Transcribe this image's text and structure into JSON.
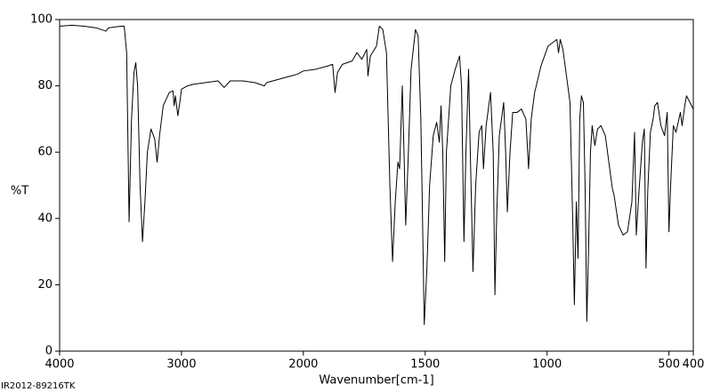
{
  "chart_data": {
    "type": "line",
    "xlabel": "Wavenumber[cm-1]",
    "ylabel": "%T",
    "footnote": "IR2012-89216TK",
    "color": "#000000",
    "xlim": [
      4000,
      400
    ],
    "x_scale_change": 2000,
    "xticks": [
      4000,
      3000,
      2000,
      1500,
      1000,
      500,
      400
    ],
    "ylim": [
      0,
      100
    ],
    "yticks": [
      0,
      20,
      40,
      60,
      80,
      100
    ],
    "x": [
      4000,
      3900,
      3800,
      3700,
      3620,
      3600,
      3500,
      3470,
      3450,
      3430,
      3410,
      3390,
      3375,
      3360,
      3340,
      3320,
      3300,
      3280,
      3250,
      3220,
      3200,
      3180,
      3150,
      3100,
      3070,
      3060,
      3050,
      3030,
      3010,
      3000,
      2950,
      2900,
      2800,
      2700,
      2650,
      2600,
      2500,
      2400,
      2320,
      2300,
      2200,
      2100,
      2050,
      2000,
      1950,
      1900,
      1880,
      1870,
      1860,
      1840,
      1800,
      1780,
      1760,
      1740,
      1735,
      1725,
      1700,
      1688,
      1674,
      1659,
      1645,
      1634,
      1623,
      1612,
      1605,
      1594,
      1587,
      1580,
      1569,
      1558,
      1540,
      1529,
      1518,
      1511,
      1504,
      1493,
      1482,
      1467,
      1453,
      1442,
      1435,
      1428,
      1420,
      1413,
      1395,
      1377,
      1359,
      1351,
      1341,
      1333,
      1322,
      1315,
      1304,
      1293,
      1279,
      1268,
      1261,
      1250,
      1232,
      1221,
      1214,
      1207,
      1196,
      1178,
      1170,
      1163,
      1152,
      1141,
      1123,
      1105,
      1087,
      1076,
      1065,
      1051,
      1025,
      996,
      960,
      953,
      946,
      935,
      924,
      906,
      895,
      888,
      880,
      873,
      866,
      859,
      851,
      844,
      837,
      830,
      822,
      815,
      804,
      793,
      779,
      761,
      743,
      732,
      725,
      707,
      688,
      670,
      652,
      641,
      634,
      623,
      609,
      601,
      594,
      587,
      576,
      565,
      558,
      547,
      533,
      518,
      507,
      500,
      493,
      482,
      471,
      453,
      446,
      435,
      428,
      400
    ],
    "values": [
      98,
      98.3,
      98,
      97.5,
      96.5,
      97.5,
      98,
      98,
      90,
      39,
      70,
      84,
      87,
      80,
      50,
      33,
      45,
      60,
      67,
      64,
      57,
      65,
      74,
      78,
      78.5,
      74,
      77,
      71,
      76,
      79,
      80,
      80.5,
      81,
      81.5,
      79.5,
      81.5,
      81.5,
      81,
      80,
      81,
      82,
      83,
      83.5,
      84.5,
      85,
      86,
      86.5,
      78,
      84,
      86.5,
      87.5,
      90,
      88,
      91,
      83,
      89,
      92,
      98,
      97,
      90,
      50,
      27,
      45,
      57,
      55,
      80,
      60,
      38,
      60,
      85,
      97,
      95,
      70,
      40,
      8,
      25,
      50,
      65,
      69,
      63,
      74,
      60,
      27,
      60,
      80,
      85,
      89,
      80,
      33,
      60,
      85,
      60,
      24,
      50,
      66,
      68,
      55,
      68,
      78,
      60,
      17,
      40,
      65,
      75,
      60,
      42,
      60,
      72,
      72,
      73,
      70,
      55,
      70,
      78,
      86,
      92,
      94,
      90,
      94,
      91,
      85,
      75,
      40,
      14,
      45,
      28,
      70,
      77,
      75,
      50,
      9,
      30,
      60,
      68,
      62,
      67,
      68,
      65,
      55,
      49,
      47,
      38,
      35,
      36,
      45,
      66,
      35,
      48,
      63,
      67,
      25,
      48,
      66,
      70,
      74,
      75,
      68,
      65,
      72,
      36,
      50,
      68,
      66,
      72,
      68,
      74,
      77,
      73
    ]
  }
}
